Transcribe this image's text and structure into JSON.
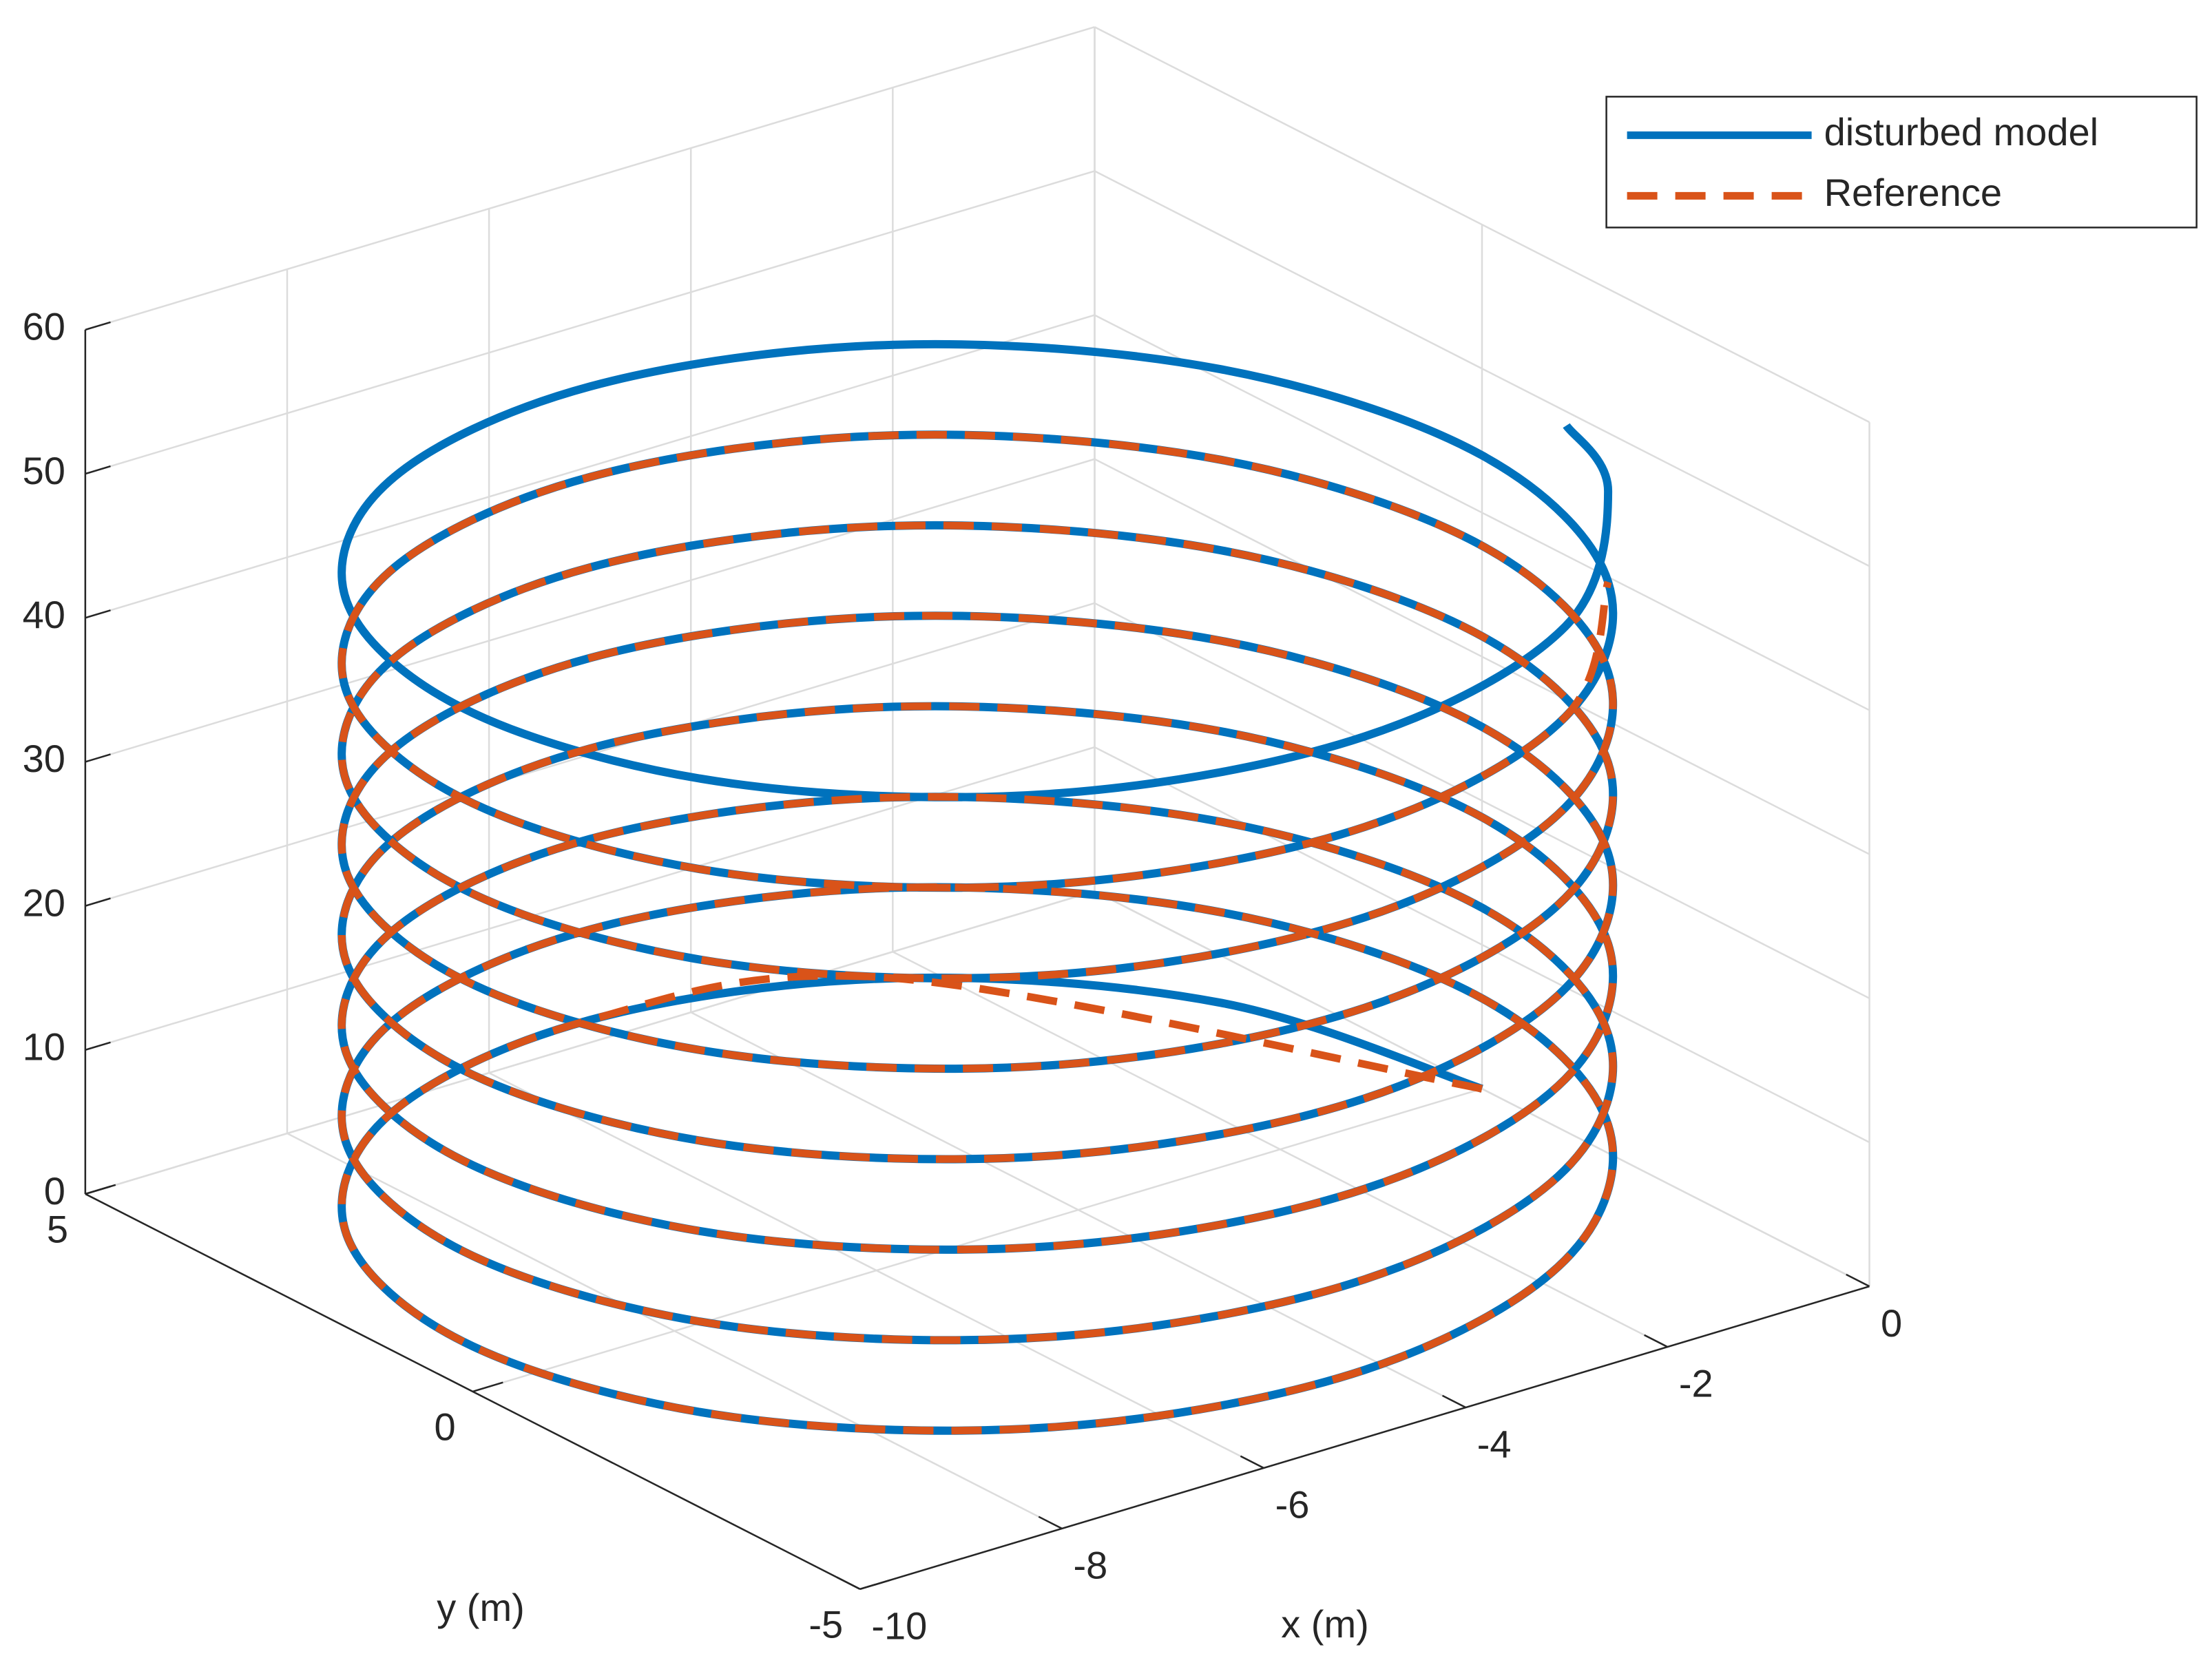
{
  "chart_data": {
    "type": "line3d",
    "xlabel": "x (m)",
    "ylabel": "y (m)",
    "xlim": [
      -10,
      0
    ],
    "ylim": [
      -5,
      5
    ],
    "zlim": [
      0,
      60
    ],
    "xticks": [
      -10,
      -8,
      -6,
      -4,
      -2,
      0
    ],
    "yticks": [
      -5,
      0,
      5
    ],
    "zticks": [
      0,
      10,
      20,
      30,
      40,
      50,
      60
    ],
    "grid": true,
    "legend": "upper right",
    "series": [
      {
        "name": "disturbed model",
        "color": "#0072bd",
        "line_style": "solid",
        "x": [
          0,
          -0.67,
          -2.5,
          -5,
          -7.5,
          -9.33,
          -10,
          -9.33,
          -7.5,
          -5,
          -2.5,
          -0.67,
          0,
          -0.67,
          -2.5,
          -5,
          -7.5,
          -9.33,
          -10,
          -9.33,
          -7.5,
          -5,
          -2.5,
          -0.67,
          0,
          -0.67,
          -2.5,
          -5,
          -7.5,
          -9.33,
          -10,
          -9.33,
          -7.5,
          -5,
          -2.5,
          -0.67,
          0,
          -0.67,
          -2.5,
          -5,
          -7.5,
          -9.33,
          -10,
          -9.33,
          -7.5,
          -5,
          -2.5,
          -0.67,
          0,
          -0.67,
          -2.5,
          -5,
          -7.5,
          -9.33,
          -10,
          -9.33,
          -7.5,
          -5,
          -2.5,
          -0.67,
          0,
          -0.67,
          -2.5,
          -5,
          -7.5,
          -9.33,
          -10,
          -9.33,
          -7.5,
          -5,
          -2.5,
          -0.67,
          0,
          -0.67,
          -2.5,
          -5,
          -7.5,
          -9.33,
          -10,
          -9.33,
          -7.5,
          -5,
          -2.5,
          -0.67,
          0,
          -0.67,
          -2.5,
          -5,
          -7.5,
          -9.33,
          -10,
          -9.33,
          -7.5,
          -5,
          -2.5,
          -0.67,
          -0.17
        ],
        "y": [
          0,
          2.5,
          4.33,
          5,
          4.33,
          2.5,
          0,
          -2.5,
          -4.33,
          -5,
          -4.33,
          -2.5,
          0,
          2.5,
          4.33,
          5,
          4.33,
          2.5,
          0,
          -2.5,
          -4.33,
          -5,
          -4.33,
          -2.5,
          0,
          2.5,
          4.33,
          5,
          4.33,
          2.5,
          0,
          -2.5,
          -4.33,
          -5,
          -4.33,
          -2.5,
          0,
          2.5,
          4.33,
          5,
          4.33,
          2.5,
          0,
          -2.5,
          -4.33,
          -5,
          -4.33,
          -2.5,
          0,
          2.5,
          4.33,
          5,
          4.33,
          2.5,
          0,
          -2.5,
          -4.33,
          -5,
          -4.33,
          -2.5,
          0,
          2.5,
          4.33,
          5,
          4.33,
          2.5,
          0,
          -2.5,
          -4.33,
          -5,
          -4.33,
          -2.5,
          0,
          2.5,
          4.33,
          5,
          4.33,
          2.5,
          0,
          -2.5,
          -4.33,
          -5,
          -4.33,
          -2.5,
          0,
          2.5,
          4.33,
          5,
          4.33,
          2.5,
          0,
          -2.5,
          -4.33,
          -5,
          -4.33,
          -2.5,
          -1.31
        ],
        "z": [
          0,
          0.52,
          1.05,
          1.57,
          2.09,
          2.62,
          3.14,
          3.67,
          4.19,
          4.71,
          5.24,
          5.76,
          6.28,
          6.81,
          7.33,
          7.85,
          8.38,
          8.9,
          9.42,
          9.95,
          10.47,
          11,
          11.52,
          12.04,
          12.57,
          13.09,
          13.61,
          14.14,
          14.66,
          15.18,
          15.71,
          16.23,
          16.76,
          17.28,
          17.8,
          18.33,
          18.85,
          19.37,
          19.9,
          20.42,
          20.94,
          21.47,
          21.99,
          22.51,
          23.04,
          23.56,
          24.09,
          24.61,
          25.13,
          25.66,
          26.18,
          26.7,
          27.23,
          27.75,
          28.27,
          28.8,
          29.32,
          29.85,
          30.37,
          30.89,
          31.42,
          31.94,
          32.46,
          32.99,
          33.51,
          34.03,
          34.56,
          35.08,
          35.6,
          36.13,
          36.65,
          37.18,
          37.7,
          38.22,
          38.75,
          39.27,
          39.79,
          40.32,
          40.84,
          41.36,
          41.89,
          42.41,
          42.94,
          43.46,
          43.98,
          44.51,
          45.03,
          45.55,
          46.08,
          46.6,
          47.12,
          47.65,
          48.17,
          48.69,
          49.22,
          49.74,
          50
        ]
      },
      {
        "name": "Reference",
        "color": "#d95319",
        "line_style": "dashed",
        "x": [
          0,
          -2.5,
          -5,
          -7.5,
          -9.33,
          -10,
          -9.33,
          -7.5,
          -5,
          -2.5,
          -0.67,
          0,
          -0.67,
          -2.5,
          -5,
          -7.5,
          -9.33,
          -10,
          -9.33,
          -7.5,
          -5,
          -2.5,
          -0.67,
          0,
          -0.67,
          -2.5,
          -5,
          -7.5,
          -9.33,
          -10,
          -9.33,
          -7.5,
          -5,
          -2.5,
          -0.67,
          0,
          -0.67,
          -2.5,
          -5,
          -7.5,
          -9.33,
          -10,
          -9.33,
          -7.5,
          -5,
          -2.5,
          -0.67,
          0,
          -0.67,
          -2.5,
          -5,
          -7.5,
          -9.33,
          -10,
          -9.33,
          -7.5,
          -5,
          -2.5,
          -0.67,
          0,
          -0.67,
          -2.5,
          -5,
          -7.5,
          -9.33,
          -10,
          -9.33,
          -7.5,
          -5,
          -2.5,
          -0.67,
          0,
          -0.67,
          -2.5,
          -5,
          -7.5,
          -9.33,
          -10,
          -9.33,
          -7.5,
          -5,
          -2.5,
          -0.67
        ],
        "y": [
          0,
          4.33,
          5,
          4.33,
          2.5,
          0,
          -2.5,
          -4.33,
          -5,
          -4.33,
          -2.5,
          0,
          2.5,
          4.33,
          5,
          4.33,
          2.5,
          0,
          -2.5,
          -4.33,
          -5,
          -4.33,
          -2.5,
          0,
          2.5,
          4.33,
          5,
          4.33,
          2.5,
          0,
          -2.5,
          -4.33,
          -5,
          -4.33,
          -2.5,
          0,
          2.5,
          4.33,
          5,
          4.33,
          2.5,
          0,
          -2.5,
          -4.33,
          -5,
          -4.33,
          -2.5,
          0,
          2.5,
          4.33,
          5,
          4.33,
          2.5,
          0,
          -2.5,
          -4.33,
          -5,
          -4.33,
          -2.5,
          0,
          2.5,
          4.33,
          5,
          4.33,
          2.5,
          0,
          -2.5,
          -4.33,
          -5,
          -4.33,
          -2.5,
          0,
          2.5,
          4.33,
          5,
          4.33,
          2.5,
          0,
          -2.5,
          -4.33,
          -5,
          -4.33,
          -2.5
        ],
        "z": [
          0,
          1.05,
          1.57,
          2.09,
          2.62,
          3.14,
          3.67,
          4.19,
          4.71,
          5.24,
          5.76,
          6.28,
          6.81,
          7.33,
          7.85,
          8.38,
          8.9,
          9.42,
          9.95,
          10.47,
          11,
          11.52,
          12.04,
          12.57,
          13.09,
          13.61,
          14.14,
          14.66,
          15.18,
          15.71,
          16.23,
          16.76,
          17.28,
          17.8,
          18.33,
          18.85,
          19.37,
          19.9,
          20.42,
          20.94,
          21.47,
          21.99,
          22.51,
          23.04,
          23.56,
          24.09,
          24.61,
          25.13,
          25.66,
          26.18,
          26.7,
          27.23,
          27.75,
          28.27,
          28.8,
          29.32,
          29.85,
          30.37,
          30.89,
          31.42,
          31.94,
          32.46,
          32.99,
          33.51,
          34.03,
          34.56,
          35.08,
          35.6,
          36.13,
          36.65,
          37.18,
          37.7,
          38.22,
          38.75,
          39.27,
          39.79,
          40.32,
          40.84,
          41.36,
          41.89,
          42.41,
          42.94,
          43.46
        ]
      }
    ]
  }
}
